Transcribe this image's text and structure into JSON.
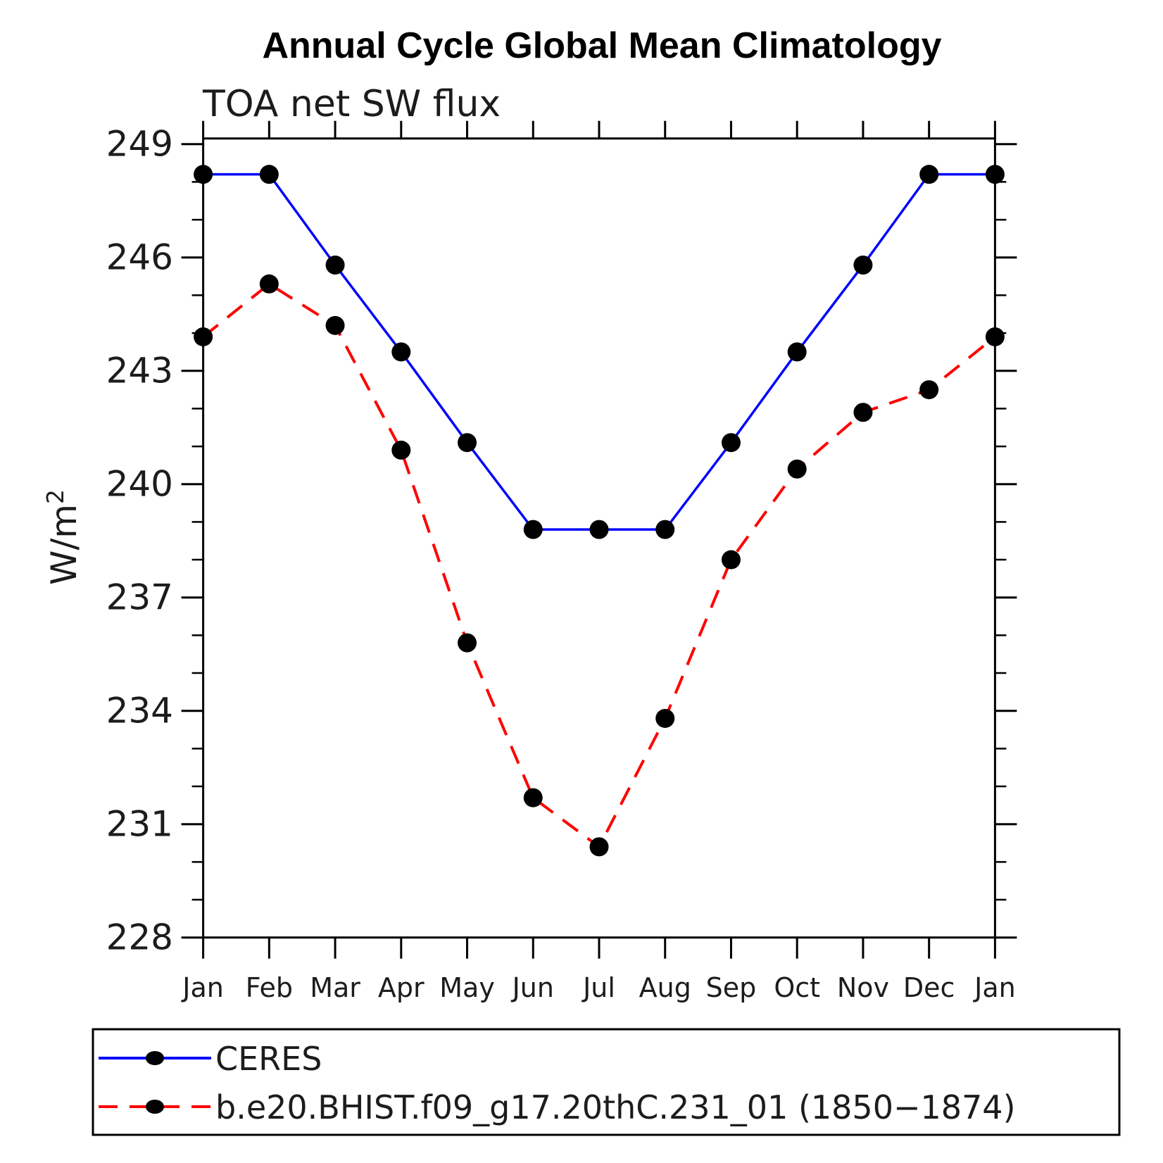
{
  "chart_data": {
    "type": "line",
    "title": "Annual Cycle Global Mean Climatology",
    "subtitle": "TOA net SW flux",
    "ylabel_base": "W/m",
    "ylabel_exponent": "2",
    "categories": [
      "Jan",
      "Feb",
      "Mar",
      "Apr",
      "May",
      "Jun",
      "Jul",
      "Aug",
      "Sep",
      "Oct",
      "Nov",
      "Dec",
      "Jan"
    ],
    "series": [
      {
        "name": "CERES",
        "color": "#0000ff",
        "line_style": "solid",
        "marker": "filled-circle",
        "marker_color": "#000000",
        "values": [
          248.2,
          248.2,
          245.8,
          243.5,
          241.1,
          238.8,
          238.8,
          238.8,
          241.1,
          243.5,
          245.8,
          248.2,
          248.2
        ]
      },
      {
        "name": "b.e20.BHIST.f09_g17.20thC.231_01 (1850−1874)",
        "color": "#ff0000",
        "line_style": "dashed",
        "marker": "filled-circle",
        "marker_color": "#000000",
        "values": [
          243.9,
          245.3,
          244.2,
          240.9,
          235.8,
          231.7,
          230.4,
          233.8,
          238.0,
          240.4,
          241.9,
          242.5,
          243.9
        ]
      }
    ],
    "y_major_ticks": [
      228,
      231,
      234,
      237,
      240,
      243,
      246,
      249
    ],
    "y_minor_tick_interval": 1,
    "ylim": [
      228,
      249.15
    ],
    "xlabel": "",
    "grid": false,
    "legend_position": "bottom-left-box",
    "axis_color": "#000000"
  }
}
